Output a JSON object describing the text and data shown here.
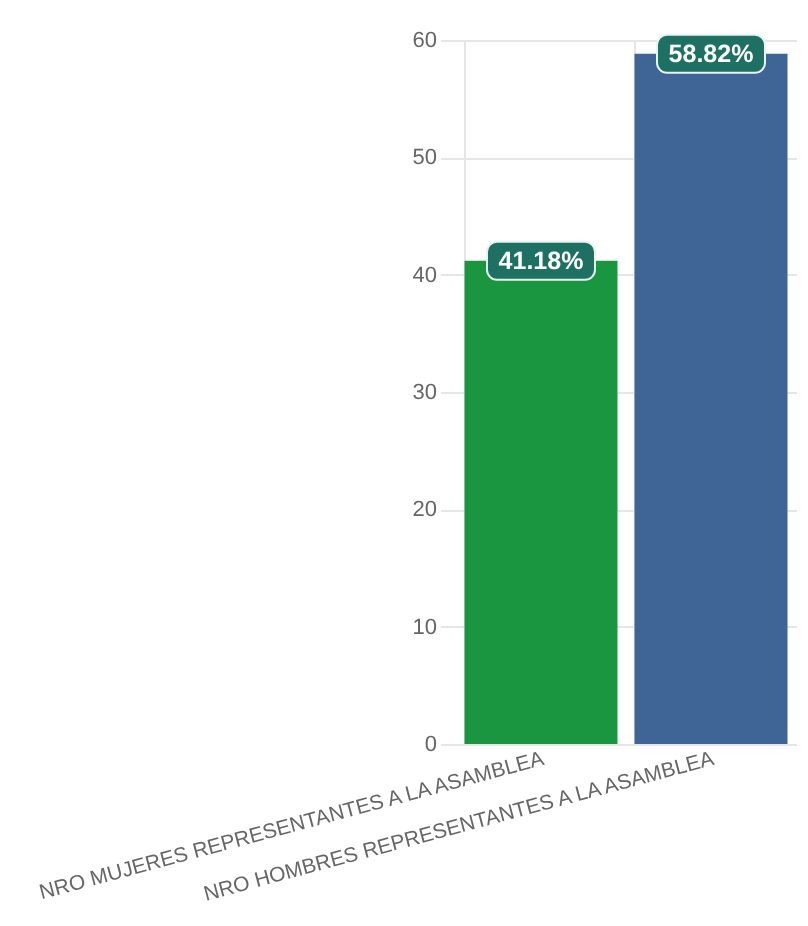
{
  "chart_data": {
    "type": "bar",
    "categories": [
      "NRO MUJERES REPRESENTANTES A LA ASAMBLEA",
      "NRO HOMBRES REPRESENTANTES A LA ASAMBLEA"
    ],
    "values": [
      41.18,
      58.82
    ],
    "colors": [
      "#1a9641",
      "#3f6496"
    ],
    "value_labels": [
      "41.18%",
      "58.82%"
    ],
    "ylim": [
      0,
      60
    ],
    "yticks": [
      0,
      10,
      20,
      30,
      40,
      50,
      60
    ],
    "grid": true
  }
}
